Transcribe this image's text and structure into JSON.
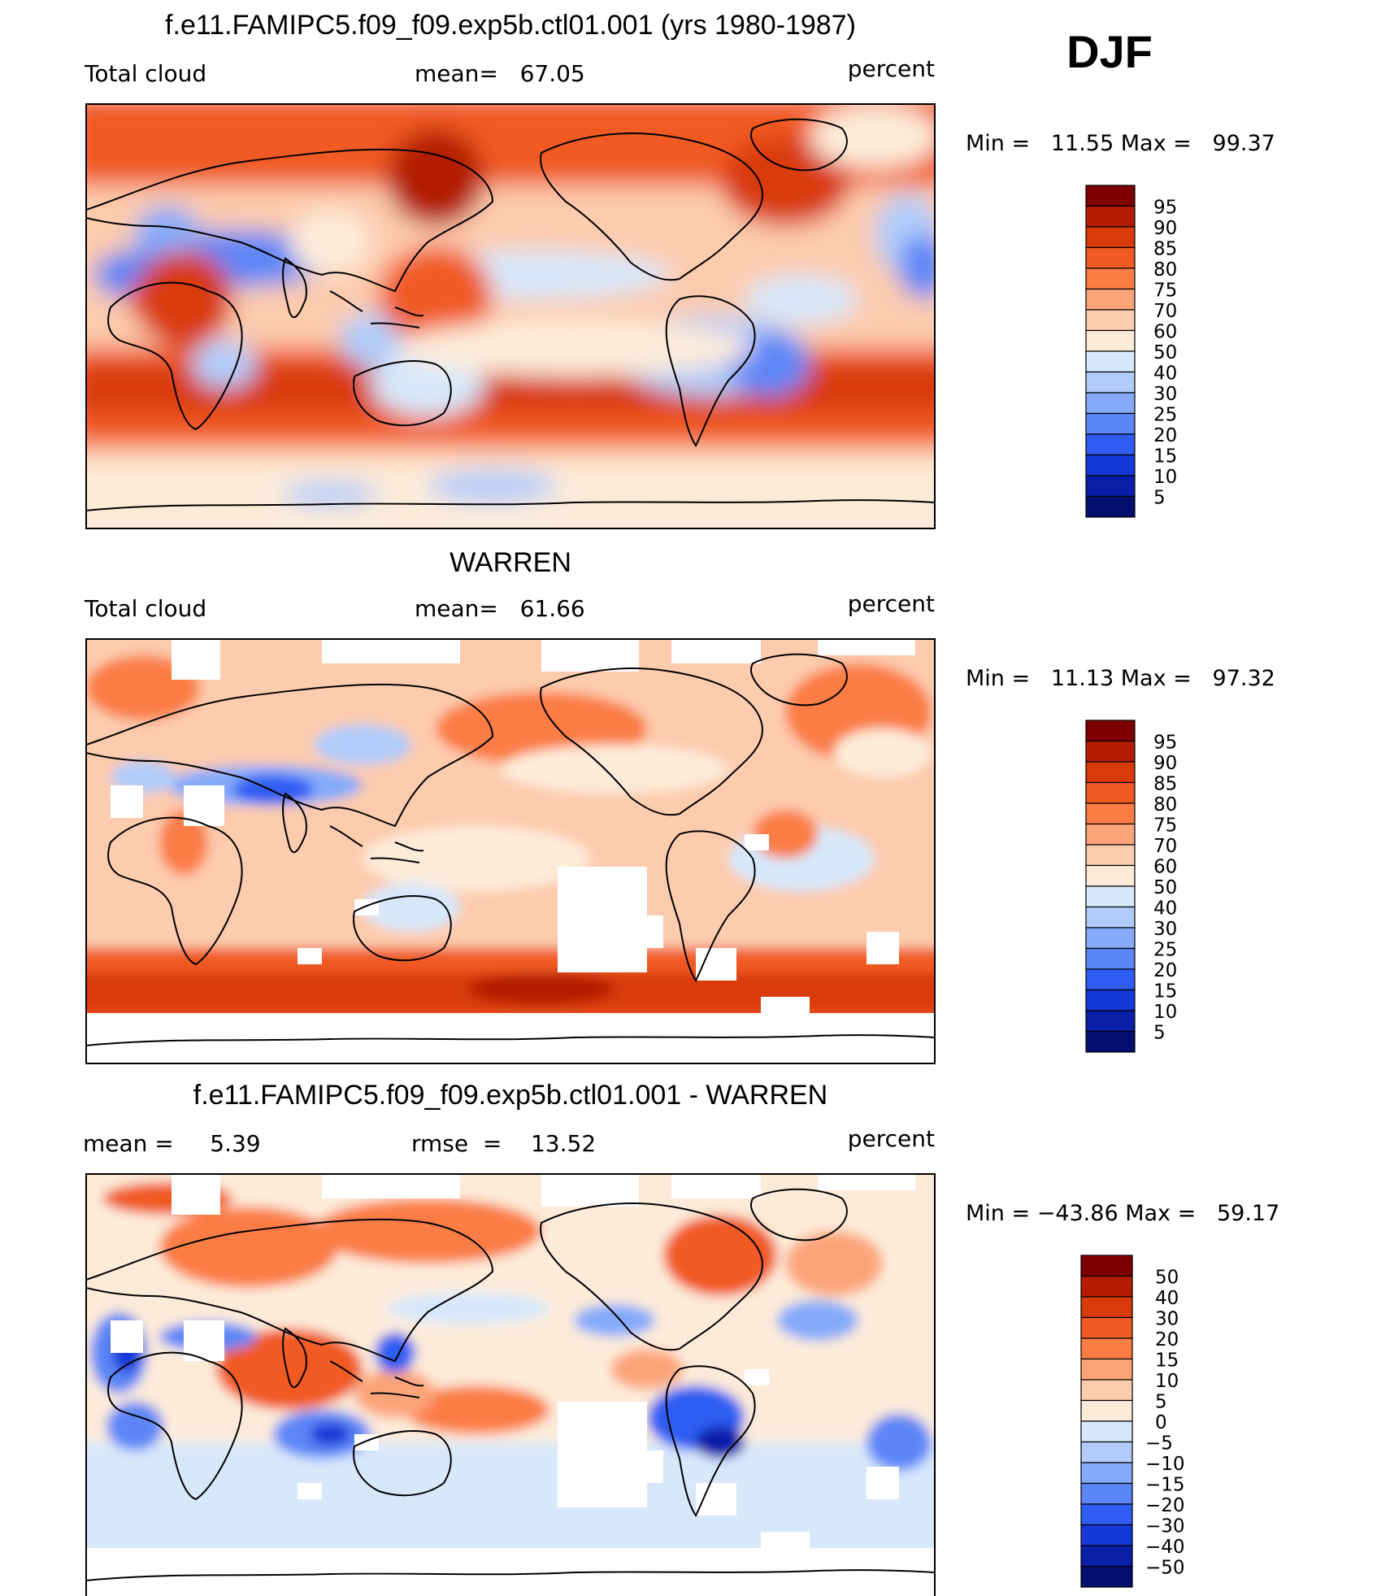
{
  "season": "DJF",
  "panels": [
    {
      "title": "f.e11.FAMIPC5.f09_f09.exp5b.ctl01.001 (yrs 1980-1987)",
      "left_label": "Total cloud",
      "mid_label": "mean=   67.05",
      "units": "percent",
      "minmax": "Min =   11.55 Max =   99.37",
      "colorbar_labels": [
        "95",
        "90",
        "85",
        "80",
        "75",
        "70",
        "60",
        "50",
        "40",
        "30",
        "25",
        "20",
        "15",
        "10",
        "5"
      ],
      "colors": [
        "#7e0000",
        "#b41c00",
        "#d93a0a",
        "#f15a22",
        "#fb7d45",
        "#fca479",
        "#fdcbad",
        "#fdebd9",
        "#d7e8fb",
        "#b1ccfa",
        "#85aafa",
        "#5b86f7",
        "#2f5df3",
        "#1539d8",
        "#0a1fa8",
        "#030f6e"
      ],
      "map": "model"
    },
    {
      "title": "WARREN",
      "left_label": "Total cloud",
      "mid_label": "mean=   61.66",
      "units": "percent",
      "minmax": "Min =   11.13 Max =   97.32",
      "colorbar_labels": [
        "95",
        "90",
        "85",
        "80",
        "75",
        "70",
        "60",
        "50",
        "40",
        "30",
        "25",
        "20",
        "15",
        "10",
        "5"
      ],
      "colors": [
        "#7e0000",
        "#b41c00",
        "#d93a0a",
        "#f15a22",
        "#fb7d45",
        "#fca479",
        "#fdcbad",
        "#fdebd9",
        "#d7e8fb",
        "#b1ccfa",
        "#85aafa",
        "#5b86f7",
        "#2f5df3",
        "#1539d8",
        "#0a1fa8",
        "#030f6e"
      ],
      "map": "obs"
    },
    {
      "title": "f.e11.FAMIPC5.f09_f09.exp5b.ctl01.001 - WARREN",
      "left_label": "mean =     5.39",
      "mid_label": "rmse  =    13.52",
      "units": "percent",
      "minmax": "Min = −43.86 Max =   59.17",
      "colorbar_labels": [
        "50",
        "40",
        "30",
        "20",
        "15",
        "10",
        "5",
        "0",
        "−5",
        "−10",
        "−15",
        "−20",
        "−30",
        "−40",
        "−50"
      ],
      "colors": [
        "#7e0000",
        "#b41c00",
        "#d93a0a",
        "#f15a22",
        "#fb7d45",
        "#fca479",
        "#fdcbad",
        "#fdebd9",
        "#d7e8fb",
        "#b1ccfa",
        "#85aafa",
        "#5b86f7",
        "#2f5df3",
        "#1539d8",
        "#0a1fa8",
        "#030f6e"
      ],
      "map": "diff"
    }
  ],
  "chart_data": {
    "type": "heatmap",
    "description_note": "",
    "variable": "Total cloud",
    "units": "percent",
    "panels": [
      {
        "title": "f.e11.FAMIPC5.f09_f09.exp5b.ctl01.001 (yrs 1980-1987)",
        "mean": 67.05,
        "min": 11.55,
        "max": 99.37,
        "levels": [
          5,
          10,
          15,
          20,
          25,
          30,
          40,
          50,
          60,
          70,
          75,
          80,
          85,
          90,
          95
        ]
      },
      {
        "title": "WARREN",
        "mean": 61.66,
        "min": 11.13,
        "max": 97.32,
        "levels": [
          5,
          10,
          15,
          20,
          25,
          30,
          40,
          50,
          60,
          70,
          75,
          80,
          85,
          90,
          95
        ]
      },
      {
        "title": "f.e11.FAMIPC5.f09_f09.exp5b.ctl01.001 - WARREN",
        "mean": 5.39,
        "rmse": 13.52,
        "min": -43.86,
        "max": 59.17,
        "levels": [
          -50,
          -40,
          -30,
          -20,
          -15,
          -10,
          -5,
          0,
          5,
          10,
          15,
          20,
          30,
          40,
          50
        ]
      }
    ]
  }
}
